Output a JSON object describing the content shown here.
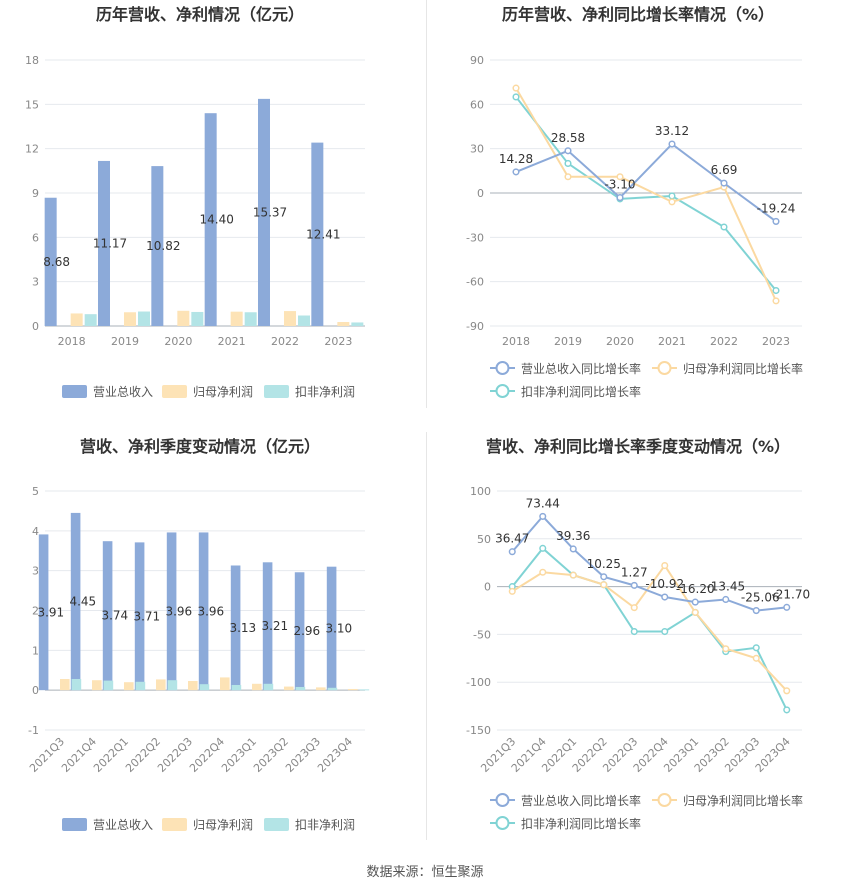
{
  "source_text": "数据来源：恒生聚源",
  "colors": {
    "revenue": "#8caad9",
    "net_profit": "#fde3b6",
    "deducted_profit": "#b3e4e6",
    "line_revenue": "#8caad9",
    "line_net_profit": "#fbd9a1",
    "line_deducted_profit": "#80d3d4",
    "grid": "#e6e9ee",
    "axis_text": "#888888",
    "title_text": "#333333",
    "label_text": "#333333"
  },
  "chart_data": [
    {
      "id": "annual_values",
      "type": "bar",
      "title": "历年营收、净利情况（亿元）",
      "categories": [
        "2018",
        "2019",
        "2020",
        "2021",
        "2022",
        "2023"
      ],
      "series": [
        {
          "name": "营业总收入",
          "values": [
            8.68,
            11.17,
            10.82,
            14.4,
            15.37,
            12.41
          ],
          "labels": [
            "8.68",
            "11.17",
            "10.82",
            "14.40",
            "15.37",
            "12.41"
          ]
        },
        {
          "name": "归母净利润",
          "values": [
            0.85,
            0.93,
            1.03,
            0.97,
            1.01,
            0.27
          ]
        },
        {
          "name": "扣非净利润",
          "values": [
            0.8,
            0.98,
            0.95,
            0.93,
            0.71,
            0.24
          ]
        }
      ],
      "ylim": [
        0,
        18
      ],
      "yticks": [
        "0",
        "3",
        "6",
        "9",
        "12",
        "15",
        "18"
      ],
      "grid": true,
      "legend": "bottom"
    },
    {
      "id": "annual_growth",
      "type": "line",
      "title": "历年营收、净利同比增长率情况（%）",
      "categories": [
        "2018",
        "2019",
        "2020",
        "2021",
        "2022",
        "2023"
      ],
      "series": [
        {
          "name": "营业总收入同比增长率",
          "values": [
            14.28,
            28.58,
            -3.1,
            33.12,
            6.69,
            -19.24
          ],
          "labels": [
            "14.28",
            "28.58",
            "-3.10",
            "33.12",
            "6.69",
            "-19.24"
          ]
        },
        {
          "name": "归母净利润同比增长率",
          "values": [
            71,
            11,
            11,
            -6,
            4,
            -73
          ]
        },
        {
          "name": "扣非净利润同比增长率",
          "values": [
            65,
            20,
            -4,
            -2,
            -23,
            -66
          ]
        }
      ],
      "ylim": [
        -90,
        90
      ],
      "yticks": [
        "90",
        "60",
        "30",
        "0",
        "-30",
        "-60",
        "-90"
      ],
      "grid": true,
      "legend": "bottom"
    },
    {
      "id": "quarterly_values",
      "type": "bar",
      "title": "营收、净利季度变动情况（亿元）",
      "categories": [
        "2021Q3",
        "2021Q4",
        "2022Q1",
        "2022Q2",
        "2022Q3",
        "2022Q4",
        "2023Q1",
        "2023Q2",
        "2023Q3",
        "2023Q4"
      ],
      "series": [
        {
          "name": "营业总收入",
          "values": [
            3.91,
            4.45,
            3.74,
            3.71,
            3.96,
            3.96,
            3.13,
            3.21,
            2.96,
            3.1
          ],
          "labels": [
            "3.91",
            "4.45",
            "3.74",
            "3.71",
            "3.96",
            "3.96",
            "3.13",
            "3.21",
            "2.96",
            "3.10"
          ]
        },
        {
          "name": "归母净利润",
          "values": [
            0.28,
            0.25,
            0.2,
            0.27,
            0.23,
            0.32,
            0.16,
            0.09,
            0.07,
            0.03
          ]
        },
        {
          "name": "扣非净利润",
          "values": [
            0.28,
            0.24,
            0.21,
            0.25,
            0.15,
            0.13,
            0.16,
            0.08,
            0.06,
            0.02
          ]
        }
      ],
      "ylim": [
        -1,
        5
      ],
      "yticks": [
        "5",
        "4",
        "3",
        "2",
        "1",
        "0",
        "-1"
      ],
      "grid": true,
      "legend": "bottom"
    },
    {
      "id": "quarterly_growth",
      "type": "line",
      "title": "营收、净利同比增长率季度变动情况（%）",
      "categories": [
        "2021Q3",
        "2021Q4",
        "2022Q1",
        "2022Q2",
        "2022Q3",
        "2022Q4",
        "2023Q1",
        "2023Q2",
        "2023Q3",
        "2023Q4"
      ],
      "series": [
        {
          "name": "营业总收入同比增长率",
          "values": [
            36.47,
            73.44,
            39.36,
            10.25,
            1.27,
            -10.92,
            -16.2,
            -13.45,
            -25.06,
            -21.7
          ],
          "labels": [
            "36.47",
            "73.44",
            "39.36",
            "10.25",
            "1.27",
            "-10.92",
            "-16.20",
            "-13.45",
            "-25.06",
            "-21.70"
          ]
        },
        {
          "name": "归母净利润同比增长率",
          "values": [
            -5,
            15,
            12,
            2,
            -22,
            22,
            -27,
            -65,
            -75,
            -109
          ]
        },
        {
          "name": "扣非净利润同比增长率",
          "values": [
            0,
            40,
            12,
            2,
            -47,
            -47,
            -27,
            -68,
            -64,
            -129
          ]
        }
      ],
      "ylim": [
        -150,
        100
      ],
      "yticks": [
        "100",
        "50",
        "0",
        "-50",
        "-100",
        "-150"
      ],
      "grid": true,
      "legend": "bottom"
    }
  ]
}
